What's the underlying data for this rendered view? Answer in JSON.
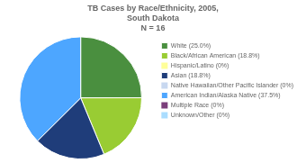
{
  "chart_data": {
    "type": "pie",
    "title": [
      "TB Cases by Race/Ethnicity, 2005,",
      "South Dakota"
    ],
    "subtitle": "N = 16",
    "categories": [
      "White (25.0%)",
      "Black/African American (18.8%)",
      "Hispanic/Latino (0%)",
      "Asian (18.8%)",
      "Native Hawaiian/Other Pacific Islander (0%)",
      "American Indian/Alaska Native (37.5%)",
      "Multiple Race (0%)",
      "Unknown/Other (0%)"
    ],
    "values": [
      25.0,
      18.8,
      0.0,
      18.8,
      0.0,
      37.5,
      0.0,
      0.0
    ],
    "colors": [
      "#4a8f3f",
      "#99cc33",
      "#ffff99",
      "#1f3d7a",
      "#c8d8f0",
      "#4da6ff",
      "#7b3f7b",
      "#aaddff"
    ],
    "legend": "right"
  }
}
